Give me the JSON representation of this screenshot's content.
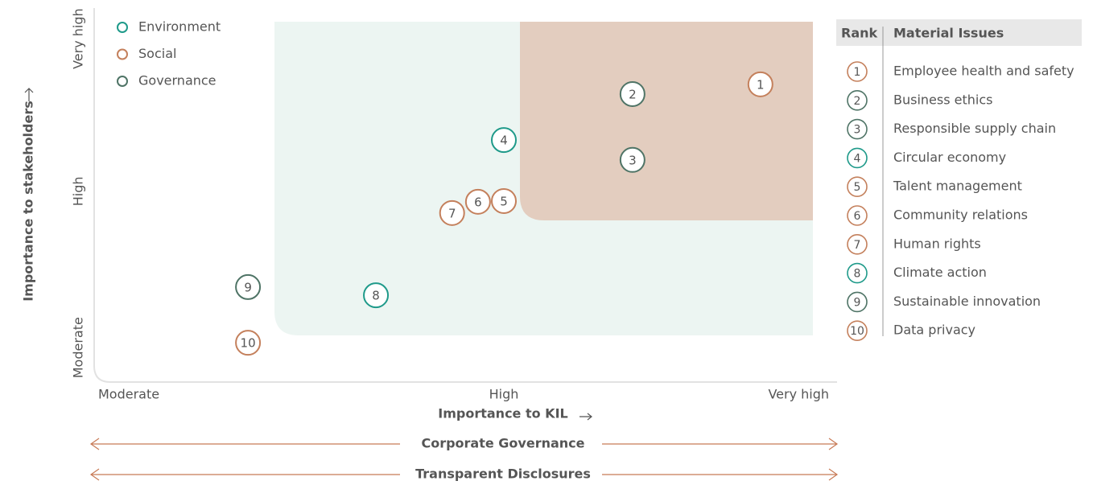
{
  "chart_data": {
    "type": "scatter",
    "xlabel": "Importance to KIL",
    "ylabel": "Importance to stakeholders",
    "xlim": [
      0,
      10
    ],
    "ylim": [
      0,
      10
    ],
    "xticks": [
      {
        "value": 0,
        "label": "Moderate"
      },
      {
        "value": 5.7,
        "label": "High"
      },
      {
        "value": 10,
        "label": "Very high"
      }
    ],
    "yticks": [
      {
        "value": 0.92,
        "label": "Moderate"
      },
      {
        "value": 5.1,
        "label": "High"
      },
      {
        "value": 9.18,
        "label": "Very high"
      }
    ],
    "legend": "top-left",
    "series": [
      {
        "name": "Environment",
        "color": "#1f9a8a",
        "labels": [
          "4",
          "8"
        ],
        "x": [
          5.7,
          3.92
        ],
        "y": [
          6.47,
          2.32
        ]
      },
      {
        "name": "Social",
        "color": "#c4805c",
        "labels": [
          "1",
          "5",
          "6",
          "7",
          "10"
        ],
        "x": [
          9.27,
          5.7,
          5.34,
          4.98,
          2.14
        ],
        "y": [
          7.96,
          4.84,
          4.82,
          4.52,
          1.05
        ]
      },
      {
        "name": "Governance",
        "color": "#4f7466",
        "labels": [
          "2",
          "3",
          "9"
        ],
        "x": [
          7.49,
          7.49,
          2.14
        ],
        "y": [
          7.7,
          5.94,
          2.54
        ]
      }
    ],
    "bands": [
      "Corporate Governance",
      "Transparent Disclosures"
    ]
  },
  "table": {
    "header": [
      "Rank",
      "Material Issues"
    ],
    "rows": [
      [
        "1",
        "Employee health and safety"
      ],
      [
        "2",
        "Business ethics"
      ],
      [
        "3",
        "Responsible supply chain"
      ],
      [
        "4",
        "Circular economy"
      ],
      [
        "5",
        "Talent management"
      ],
      [
        "6",
        "Community relations"
      ],
      [
        "7",
        "Human rights"
      ],
      [
        "8",
        "Climate action"
      ],
      [
        "9",
        "Sustainable innovation"
      ],
      [
        "10",
        "Data privacy"
      ]
    ]
  }
}
